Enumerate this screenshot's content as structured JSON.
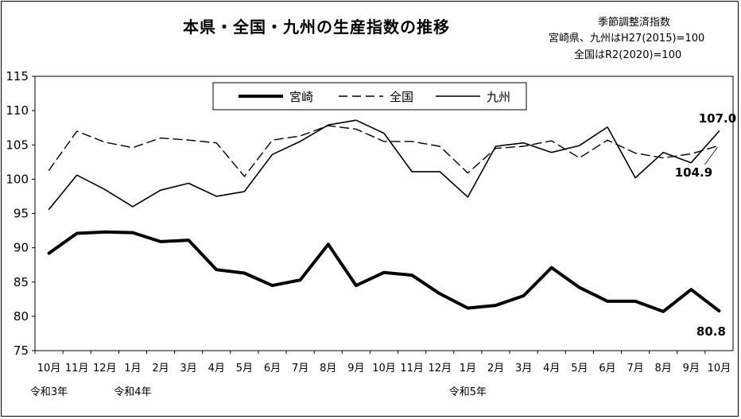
{
  "title": "本県・全国・九州の生産指数の推移",
  "notes": [
    "季節調整済指数",
    "宮崎県、九州はH27(2015)=100",
    "全国はR2(2020)=100"
  ],
  "chart_data": {
    "type": "line",
    "title": "本県・全国・九州の生産指数の推移",
    "categories": [
      "10月",
      "11月",
      "12月",
      "1月",
      "2月",
      "3月",
      "4月",
      "5月",
      "6月",
      "7月",
      "8月",
      "9月",
      "10月",
      "11月",
      "12月",
      "1月",
      "2月",
      "3月",
      "4月",
      "5月",
      "6月",
      "7月",
      "8月",
      "9月",
      "10月"
    ],
    "era_labels": [
      "令和3年",
      "令和4年",
      "令和5年"
    ],
    "ylim": [
      75,
      115
    ],
    "yticks": [
      75,
      80,
      85,
      90,
      95,
      100,
      105,
      110,
      115
    ],
    "grid": false,
    "legend_position": "top",
    "series": [
      {
        "name": "宮崎",
        "style": "thick-solid",
        "values": [
          89.2,
          92.1,
          92.3,
          92.2,
          90.9,
          91.1,
          86.8,
          86.3,
          84.5,
          85.3,
          90.5,
          84.5,
          86.4,
          86.0,
          83.3,
          81.2,
          81.6,
          83.0,
          87.1,
          84.2,
          82.2,
          82.2,
          80.7,
          83.9,
          80.8
        ]
      },
      {
        "name": "全国",
        "style": "dashed",
        "values": [
          101.3,
          107.0,
          105.4,
          104.6,
          106.0,
          105.7,
          105.3,
          100.4,
          105.7,
          106.3,
          107.8,
          107.3,
          105.5,
          105.5,
          104.8,
          100.9,
          104.5,
          104.8,
          105.6,
          103.1,
          105.7,
          103.8,
          103.1,
          103.7,
          104.9
        ]
      },
      {
        "name": "九州",
        "style": "solid",
        "values": [
          95.6,
          100.6,
          98.5,
          96.0,
          98.4,
          99.4,
          97.5,
          98.2,
          103.6,
          105.5,
          107.9,
          108.6,
          106.7,
          101.1,
          101.1,
          97.4,
          104.8,
          105.3,
          103.9,
          104.9,
          107.6,
          100.2,
          103.9,
          102.4,
          107.0
        ]
      }
    ],
    "annotations": [
      "107.0",
      "104.9",
      "80.8"
    ]
  }
}
